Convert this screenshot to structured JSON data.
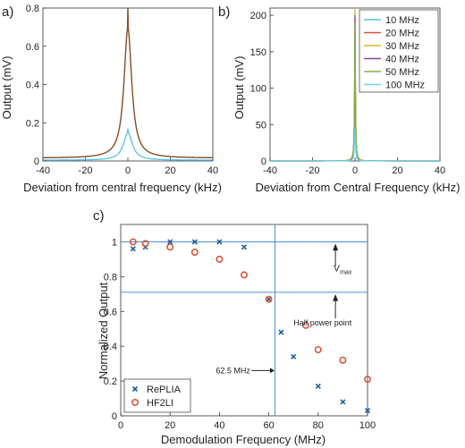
{
  "chart_data": [
    {
      "panel_label": "a)",
      "type": "line",
      "xlabel": "Deviation from central frequency (kHz)",
      "ylabel": "Output (mV)",
      "xlim": [
        -40,
        40
      ],
      "ylim": [
        0,
        0.8
      ],
      "xticks": [
        "-40",
        "-20",
        "0",
        "20",
        "40"
      ],
      "yticks": [
        "0",
        "0.2",
        "0.4",
        "0.6",
        "0.8"
      ],
      "grid": false,
      "series": [
        {
          "color": "#7cb342",
          "peak": 0.8,
          "width": 2.2,
          "floor": 0.015
        },
        {
          "color": "#8b4a2b",
          "peak": 0.8,
          "width": 2.2,
          "floor": 0.015
        },
        {
          "color": "#4fc3e8",
          "peak": 0.17,
          "width": 2.5,
          "floor": 0.004
        }
      ]
    },
    {
      "panel_label": "b)",
      "type": "line",
      "xlabel": "Deviation from Central Frequency (kHz)",
      "ylabel": "Output (mV)",
      "xlim": [
        -40,
        40
      ],
      "ylim": [
        0,
        210
      ],
      "xticks": [
        "-40",
        "-20",
        "0",
        "20",
        "40"
      ],
      "yticks": [
        "0",
        "50",
        "100",
        "150",
        "200"
      ],
      "grid": false,
      "legend_position": "top-right",
      "series": [
        {
          "name": "10 MHz",
          "color": "#4fc3e8",
          "peak": 205,
          "width": 0.25
        },
        {
          "name": "20 MHz",
          "color": "#d9553a",
          "peak": 195,
          "width": 0.25
        },
        {
          "name": "30 MHz",
          "color": "#e6b422",
          "peak": 210,
          "width": 0.22
        },
        {
          "name": "40 MHz",
          "color": "#8e44ad",
          "peak": 200,
          "width": 0.22
        },
        {
          "name": "50 MHz",
          "color": "#7cb342",
          "peak": 190,
          "width": 0.25
        },
        {
          "name": "100 MHz",
          "color": "#6fd3f2",
          "peak": 45,
          "width": 0.3
        }
      ]
    },
    {
      "panel_label": "c)",
      "type": "scatter",
      "xlabel": "Demodulation Frequency (MHz)",
      "ylabel": "Normalized Output",
      "xlim": [
        0,
        100
      ],
      "ylim": [
        0,
        1.1
      ],
      "xticks": [
        "0",
        "20",
        "40",
        "60",
        "80",
        "100"
      ],
      "yticks": [
        "0",
        "0.2",
        "0.4",
        "0.6",
        "0.8",
        "1"
      ],
      "grid": false,
      "legend_position": "bottom-left",
      "hlines": [
        1.0,
        0.71
      ],
      "vline": 62.5,
      "annotations": {
        "vmax": "V",
        "vmax_sub": "max",
        "half_power": "Half power point",
        "cutoff": "62.5 MHz"
      },
      "series": [
        {
          "name": "RePLIA",
          "marker": "x",
          "color": "#1f5f9e",
          "x": [
            5,
            10,
            20,
            30,
            40,
            50,
            60,
            65,
            70,
            80,
            90,
            100
          ],
          "y": [
            0.96,
            0.97,
            1.0,
            1.0,
            1.0,
            0.97,
            0.67,
            0.48,
            0.34,
            0.17,
            0.08,
            0.03
          ]
        },
        {
          "name": "HF2LI",
          "marker": "o",
          "color": "#d9553a",
          "x": [
            5,
            10,
            20,
            30,
            40,
            50,
            60,
            75,
            80,
            90,
            100
          ],
          "y": [
            1.0,
            0.99,
            0.97,
            0.94,
            0.9,
            0.81,
            0.67,
            0.52,
            0.38,
            0.32,
            0.21
          ]
        }
      ]
    }
  ]
}
